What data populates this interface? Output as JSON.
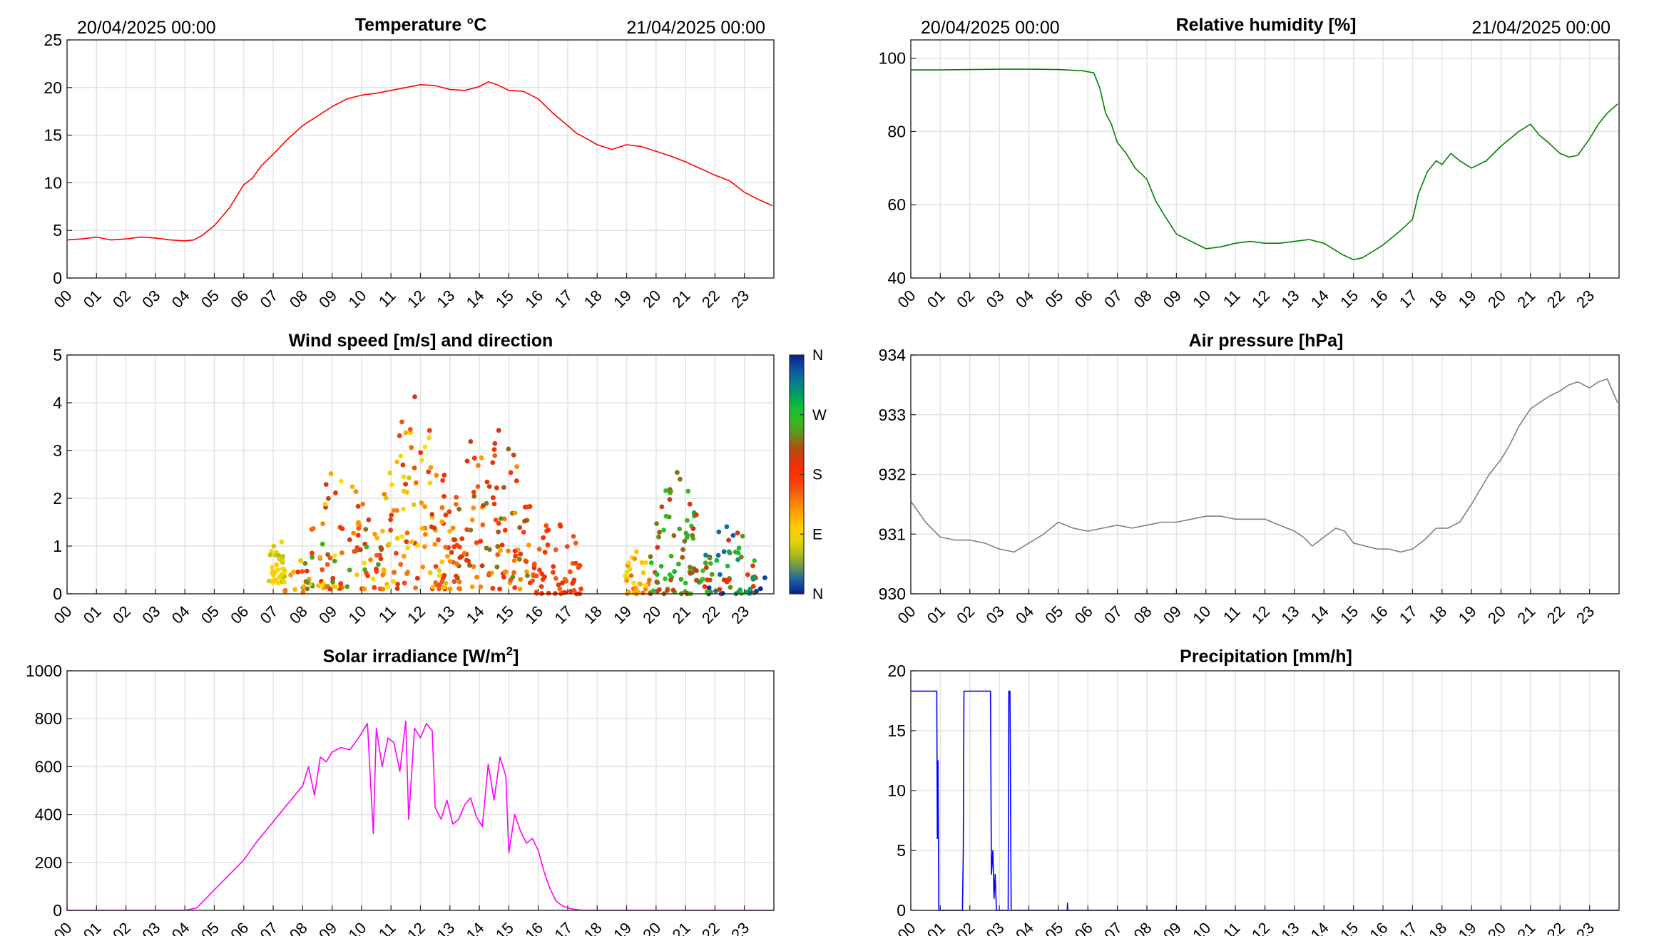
{
  "colors": {
    "temperature": "#ff0000",
    "humidity": "#008000",
    "pressure": "#808080",
    "solar": "#ff00ff",
    "precipitation": "#0000ff",
    "grid": "#e3e3e3",
    "axis": "#262626"
  },
  "x_tick_labels": [
    "00",
    "01",
    "02",
    "03",
    "04",
    "05",
    "06",
    "07",
    "08",
    "09",
    "10",
    "11",
    "12",
    "13",
    "14",
    "15",
    "16",
    "17",
    "18",
    "19",
    "20",
    "21",
    "22",
    "23"
  ],
  "chart_data": [
    {
      "id": "temperature",
      "type": "line",
      "title": "Temperature °C",
      "header_left": "20/04/2025 00:00",
      "header_right": "21/04/2025 00:00",
      "xlabel": "",
      "ylabel": "",
      "xlim": [
        0,
        24
      ],
      "ylim": [
        0,
        25
      ],
      "yticks": [
        0,
        5,
        10,
        15,
        20,
        25
      ],
      "grid": true,
      "series": [
        {
          "color": "#ff0000",
          "x": [
            0,
            0.5,
            1,
            1.5,
            2,
            2.5,
            3,
            3.5,
            4,
            4.3,
            4.6,
            5,
            5.5,
            6,
            6.3,
            6.6,
            7,
            7.5,
            8,
            8.5,
            9,
            9.5,
            10,
            10.5,
            11,
            11.5,
            12,
            12.5,
            13,
            13.5,
            14,
            14.3,
            14.6,
            15,
            15.5,
            16,
            16.5,
            17,
            17.3,
            17.6,
            18,
            18.5,
            19,
            19.5,
            20,
            20.5,
            21,
            21.5,
            22,
            22.5,
            23,
            23.5,
            23.95
          ],
          "y": [
            4.0,
            4.1,
            4.3,
            4.0,
            4.1,
            4.3,
            4.2,
            4.0,
            3.9,
            4.0,
            4.5,
            5.5,
            7.3,
            9.8,
            10.5,
            11.8,
            13.0,
            14.6,
            16.0,
            17.0,
            18.0,
            18.8,
            19.2,
            19.4,
            19.7,
            20.0,
            20.3,
            20.2,
            19.8,
            19.7,
            20.1,
            20.6,
            20.3,
            19.7,
            19.6,
            18.8,
            17.3,
            16.0,
            15.2,
            14.7,
            14.0,
            13.5,
            14.0,
            13.8,
            13.3,
            12.8,
            12.2,
            11.5,
            10.8,
            10.2,
            9.0,
            8.2,
            7.6
          ]
        }
      ]
    },
    {
      "id": "humidity",
      "type": "line",
      "title": "Relative humidity [%]",
      "header_left": "20/04/2025 00:00",
      "header_right": "21/04/2025 00:00",
      "xlabel": "",
      "ylabel": "",
      "xlim": [
        0,
        24
      ],
      "ylim": [
        40,
        105
      ],
      "yticks": [
        40,
        60,
        80,
        100
      ],
      "grid": true,
      "series": [
        {
          "color": "#008000",
          "x": [
            0,
            1,
            2,
            3,
            4,
            5,
            5.8,
            6.2,
            6.4,
            6.6,
            6.8,
            7,
            7.3,
            7.6,
            8,
            8.3,
            8.6,
            9,
            9.5,
            10,
            10.5,
            11,
            11.5,
            12,
            12.5,
            13,
            13.5,
            14,
            14.3,
            14.6,
            15,
            15.3,
            15.6,
            16,
            16.3,
            16.6,
            17,
            17.2,
            17.5,
            17.8,
            18,
            18.3,
            18.6,
            19,
            19.5,
            20,
            20.3,
            20.6,
            21,
            21.3,
            21.6,
            22,
            22.3,
            22.6,
            23,
            23.3,
            23.6,
            23.95
          ],
          "y": [
            96.8,
            96.8,
            96.9,
            97.0,
            97.0,
            96.9,
            96.6,
            96.0,
            92.0,
            85.0,
            82.0,
            77.0,
            74.0,
            70.0,
            67.0,
            61.0,
            57.0,
            52.0,
            50.0,
            48.0,
            48.5,
            49.5,
            50.0,
            49.5,
            49.5,
            50.0,
            50.5,
            49.5,
            48.0,
            46.5,
            45.0,
            45.5,
            47.0,
            49.0,
            51.0,
            53.0,
            56.0,
            63.0,
            69.0,
            72.0,
            71.0,
            74.0,
            72.0,
            70.0,
            72.0,
            76.0,
            78.0,
            80.0,
            82.0,
            79.0,
            77.0,
            74.0,
            73.0,
            73.5,
            78.0,
            82.0,
            85.0,
            87.5
          ]
        }
      ]
    },
    {
      "id": "wind",
      "type": "scatter",
      "title": "Wind speed [m/s] and direction",
      "xlabel": "",
      "ylabel": "",
      "xlim": [
        0,
        24
      ],
      "ylim": [
        0,
        5
      ],
      "yticks": [
        0,
        1,
        2,
        3,
        4,
        5
      ],
      "grid": true,
      "colorbar": {
        "labels": [
          "N",
          "W",
          "S",
          "E",
          "N"
        ],
        "colors": [
          "#0a1f8f",
          "#1166aa",
          "#00a060",
          "#22cc22",
          "#4f9f1e",
          "#ff2f00",
          "#e8440f",
          "#ff9d00",
          "#ffe000",
          "#98b01e",
          "#0a1f8f"
        ]
      },
      "clusters": [
        {
          "x": [
            6.85,
            7.4
          ],
          "y": [
            0.2,
            1.3
          ],
          "n": 38,
          "dir": [
            60,
            110
          ]
        },
        {
          "x": [
            7.4,
            8.3
          ],
          "y": [
            0.0,
            0.9
          ],
          "n": 10,
          "dir": [
            70,
            200
          ]
        },
        {
          "x": [
            8.0,
            10.7
          ],
          "y": [
            0.1,
            2.7
          ],
          "n": 95,
          "dir": [
            80,
            260
          ]
        },
        {
          "x": [
            10.7,
            13.0
          ],
          "y": [
            0.1,
            4.2
          ],
          "n": 110,
          "dir": [
            70,
            210
          ]
        },
        {
          "x": [
            13.0,
            15.8
          ],
          "y": [
            0.1,
            3.7
          ],
          "n": 120,
          "dir": [
            120,
            240
          ]
        },
        {
          "x": [
            15.8,
            17.5
          ],
          "y": [
            0.0,
            1.7
          ],
          "n": 55,
          "dir": [
            150,
            200
          ]
        },
        {
          "x": [
            18.9,
            19.8
          ],
          "y": [
            0.0,
            0.9
          ],
          "n": 30,
          "dir": [
            80,
            150
          ]
        },
        {
          "x": [
            19.8,
            21.6
          ],
          "y": [
            0.0,
            2.6
          ],
          "n": 75,
          "dir": [
            200,
            290
          ]
        },
        {
          "x": [
            21.6,
            23.4
          ],
          "y": [
            0.0,
            1.5
          ],
          "n": 60,
          "dir": [
            180,
            360
          ]
        },
        {
          "x": [
            23.4,
            23.9
          ],
          "y": [
            0.0,
            0.8
          ],
          "n": 3,
          "dir": [
            340,
            360
          ]
        }
      ]
    },
    {
      "id": "pressure",
      "type": "line",
      "title": "Air pressure [hPa]",
      "xlabel": "",
      "ylabel": "",
      "xlim": [
        0,
        24
      ],
      "ylim": [
        930,
        934
      ],
      "yticks": [
        930,
        931,
        932,
        933,
        934
      ],
      "grid": true,
      "series": [
        {
          "color": "#808080",
          "x": [
            0,
            0.5,
            1,
            1.5,
            2,
            2.5,
            3,
            3.5,
            4,
            4.5,
            5,
            5.5,
            6,
            6.5,
            7,
            7.5,
            8,
            8.5,
            9,
            9.5,
            10,
            10.5,
            11,
            11.5,
            12,
            12.5,
            13,
            13.3,
            13.6,
            14,
            14.4,
            14.7,
            15,
            15.4,
            15.8,
            16.2,
            16.6,
            17,
            17.4,
            17.8,
            18.2,
            18.6,
            19,
            19.3,
            19.6,
            20,
            20.3,
            20.6,
            21,
            21.3,
            21.6,
            22,
            22.3,
            22.6,
            23,
            23.3,
            23.6,
            23.95
          ],
          "y": [
            931.55,
            931.2,
            930.95,
            930.9,
            930.9,
            930.85,
            930.75,
            930.7,
            930.85,
            931.0,
            931.2,
            931.1,
            931.05,
            931.1,
            931.15,
            931.1,
            931.15,
            931.2,
            931.2,
            931.25,
            931.3,
            931.3,
            931.25,
            931.25,
            931.25,
            931.15,
            931.05,
            930.95,
            930.8,
            930.95,
            931.1,
            931.05,
            930.85,
            930.8,
            930.75,
            930.75,
            930.7,
            930.75,
            930.9,
            931.1,
            931.1,
            931.2,
            931.5,
            931.75,
            932.0,
            932.25,
            932.5,
            932.8,
            933.1,
            933.2,
            933.3,
            933.4,
            933.5,
            933.55,
            933.45,
            933.55,
            933.6,
            933.2
          ]
        }
      ]
    },
    {
      "id": "solar",
      "type": "line",
      "title": "Solar irradiance [W/m",
      "title_sup": "2",
      "title_end": "]",
      "xlabel": "",
      "ylabel": "",
      "xlim": [
        0,
        24
      ],
      "ylim": [
        0,
        1000
      ],
      "yticks": [
        0,
        200,
        400,
        600,
        800,
        1000
      ],
      "grid": true,
      "series": [
        {
          "color": "#ff00ff",
          "x": [
            0,
            4.0,
            4.4,
            4.8,
            5.2,
            5.6,
            6.0,
            6.4,
            6.8,
            7.2,
            7.6,
            8.0,
            8.2,
            8.4,
            8.6,
            8.8,
            9.0,
            9.3,
            9.6,
            9.9,
            10.0,
            10.2,
            10.4,
            10.5,
            10.7,
            10.9,
            11.1,
            11.3,
            11.5,
            11.6,
            11.8,
            12.0,
            12.2,
            12.4,
            12.5,
            12.7,
            12.9,
            13.1,
            13.3,
            13.5,
            13.7,
            13.9,
            14.1,
            14.3,
            14.5,
            14.7,
            14.9,
            15.0,
            15.2,
            15.4,
            15.6,
            15.8,
            16.0,
            16.2,
            16.4,
            16.6,
            16.8,
            17.0,
            17.2,
            17.5,
            18,
            24
          ],
          "y": [
            0,
            0,
            10,
            60,
            110,
            160,
            210,
            280,
            340,
            400,
            460,
            520,
            600,
            480,
            640,
            620,
            660,
            680,
            670,
            720,
            740,
            780,
            320,
            760,
            600,
            720,
            700,
            580,
            790,
            380,
            760,
            720,
            780,
            750,
            430,
            380,
            460,
            360,
            380,
            440,
            470,
            390,
            350,
            610,
            460,
            640,
            560,
            240,
            400,
            330,
            280,
            300,
            250,
            160,
            90,
            40,
            20,
            10,
            5,
            0,
            0,
            0
          ]
        }
      ]
    },
    {
      "id": "precipitation",
      "type": "line",
      "title": "Precipitation [mm/h]",
      "xlabel": "",
      "ylabel": "",
      "xlim": [
        0,
        24
      ],
      "ylim": [
        0,
        20
      ],
      "yticks": [
        0,
        5,
        10,
        15,
        20
      ],
      "grid": true,
      "series": [
        {
          "color": "#0000ff",
          "x": [
            0,
            0.88,
            0.9,
            0.92,
            0.95,
            1.75,
            1.78,
            1.8,
            1.84,
            2.7,
            2.73,
            2.78,
            2.82,
            2.86,
            2.9,
            2.95,
            3.3,
            3.32,
            3.36,
            3.4,
            3.44,
            5.3,
            5.31,
            5.32,
            24
          ],
          "y": [
            18.3,
            18.3,
            6,
            12.5,
            0,
            0,
            5,
            18.3,
            18.3,
            18.3,
            3,
            5,
            1,
            3,
            0,
            0,
            0,
            18.3,
            18.3,
            0,
            0,
            0,
            0.6,
            0,
            0
          ]
        }
      ]
    }
  ]
}
